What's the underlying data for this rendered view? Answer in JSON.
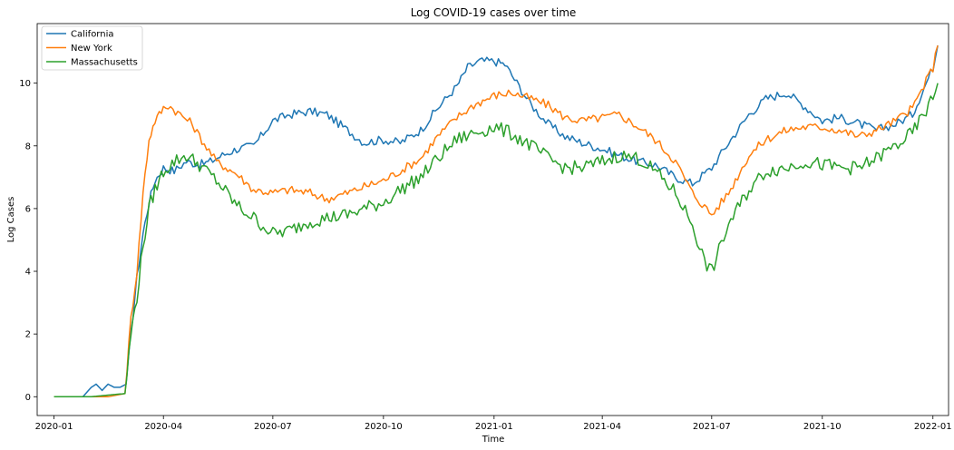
{
  "chart_data": {
    "type": "line",
    "title": "Log  COVID-19 cases over time",
    "xlabel": "Time",
    "ylabel": "Log Cases",
    "xlim": [
      "2019-12-18",
      "2022-01-14"
    ],
    "ylim": [
      -0.6,
      11.9
    ],
    "x_ticks": [
      "2020-01",
      "2020-04",
      "2020-07",
      "2020-10",
      "2021-01",
      "2021-04",
      "2021-07",
      "2021-10",
      "2022-01"
    ],
    "y_ticks": [
      0,
      2,
      4,
      6,
      8,
      10
    ],
    "legend_position": "top-left",
    "grid": false,
    "series": [
      {
        "name": "California",
        "color": "#1f77b4",
        "x": [
          "2020-01-01",
          "2020-01-25",
          "2020-02-01",
          "2020-02-05",
          "2020-02-10",
          "2020-02-15",
          "2020-02-20",
          "2020-02-25",
          "2020-03-01",
          "2020-03-05",
          "2020-03-10",
          "2020-03-15",
          "2020-03-20",
          "2020-03-25",
          "2020-04-01",
          "2020-04-10",
          "2020-04-20",
          "2020-05-01",
          "2020-05-10",
          "2020-05-20",
          "2020-06-01",
          "2020-06-15",
          "2020-07-01",
          "2020-07-15",
          "2020-08-01",
          "2020-08-15",
          "2020-09-01",
          "2020-09-15",
          "2020-10-01",
          "2020-10-15",
          "2020-11-01",
          "2020-11-15",
          "2020-12-01",
          "2020-12-10",
          "2020-12-20",
          "2021-01-01",
          "2021-01-10",
          "2021-01-20",
          "2021-02-01",
          "2021-02-15",
          "2021-03-01",
          "2021-03-15",
          "2021-04-01",
          "2021-04-15",
          "2021-05-01",
          "2021-05-15",
          "2021-06-01",
          "2021-06-15",
          "2021-07-01",
          "2021-07-15",
          "2021-08-01",
          "2021-08-15",
          "2021-09-01",
          "2021-09-15",
          "2021-10-01",
          "2021-10-15",
          "2021-11-01",
          "2021-11-15",
          "2021-12-01",
          "2021-12-15",
          "2022-01-01",
          "2022-01-05"
        ],
        "values": [
          0,
          0,
          0.3,
          0.4,
          0.2,
          0.4,
          0.3,
          0.3,
          0.4,
          2.0,
          3.8,
          5.2,
          6.2,
          6.9,
          7.3,
          7.2,
          7.5,
          7.4,
          7.5,
          7.7,
          7.9,
          8.0,
          8.8,
          9.0,
          9.1,
          9.0,
          8.5,
          8.1,
          8.2,
          8.1,
          8.5,
          9.2,
          9.9,
          10.5,
          10.7,
          10.7,
          10.6,
          10.0,
          9.3,
          8.7,
          8.3,
          8.1,
          7.9,
          7.7,
          7.5,
          7.4,
          7.0,
          6.8,
          7.3,
          8.1,
          9.0,
          9.5,
          9.7,
          9.3,
          8.8,
          8.9,
          8.7,
          8.5,
          8.7,
          9.0,
          10.5,
          11.2
        ]
      },
      {
        "name": "New York",
        "color": "#ff7f0e",
        "x": [
          "2020-01-01",
          "2020-02-01",
          "2020-02-15",
          "2020-02-29",
          "2020-03-05",
          "2020-03-10",
          "2020-03-15",
          "2020-03-20",
          "2020-03-25",
          "2020-04-01",
          "2020-04-05",
          "2020-04-15",
          "2020-04-25",
          "2020-05-01",
          "2020-05-15",
          "2020-06-01",
          "2020-06-15",
          "2020-07-01",
          "2020-07-15",
          "2020-08-01",
          "2020-08-15",
          "2020-09-01",
          "2020-09-15",
          "2020-10-01",
          "2020-10-15",
          "2020-11-01",
          "2020-11-15",
          "2020-12-01",
          "2020-12-15",
          "2021-01-01",
          "2021-01-15",
          "2021-02-01",
          "2021-02-15",
          "2021-03-01",
          "2021-03-15",
          "2021-04-01",
          "2021-04-15",
          "2021-05-01",
          "2021-05-15",
          "2021-06-01",
          "2021-06-15",
          "2021-07-01",
          "2021-07-15",
          "2021-08-01",
          "2021-08-15",
          "2021-09-01",
          "2021-09-15",
          "2021-10-01",
          "2021-10-15",
          "2021-11-01",
          "2021-11-15",
          "2021-12-01",
          "2021-12-15",
          "2022-01-01",
          "2022-01-05"
        ],
        "values": [
          0,
          0,
          0,
          0.1,
          2.5,
          4.0,
          6.5,
          8.2,
          8.8,
          9.2,
          9.3,
          9.0,
          8.7,
          8.3,
          7.5,
          7.1,
          6.6,
          6.5,
          6.6,
          6.5,
          6.3,
          6.5,
          6.7,
          6.9,
          7.2,
          7.6,
          8.3,
          8.9,
          9.3,
          9.6,
          9.7,
          9.5,
          9.3,
          8.9,
          8.8,
          8.9,
          9.0,
          8.6,
          8.2,
          7.5,
          6.5,
          5.8,
          6.5,
          7.7,
          8.2,
          8.5,
          8.6,
          8.6,
          8.5,
          8.3,
          8.5,
          8.8,
          9.2,
          10.5,
          11.2
        ]
      },
      {
        "name": "Massachusetts",
        "color": "#2ca02c",
        "x": [
          "2020-01-01",
          "2020-02-01",
          "2020-02-29",
          "2020-03-05",
          "2020-03-10",
          "2020-03-15",
          "2020-03-20",
          "2020-03-25",
          "2020-04-01",
          "2020-04-10",
          "2020-04-20",
          "2020-05-01",
          "2020-05-15",
          "2020-06-01",
          "2020-06-15",
          "2020-07-01",
          "2020-07-15",
          "2020-08-01",
          "2020-08-15",
          "2020-09-01",
          "2020-09-15",
          "2020-10-01",
          "2020-10-15",
          "2020-11-01",
          "2020-11-15",
          "2020-12-01",
          "2020-12-15",
          "2021-01-01",
          "2021-01-15",
          "2021-02-01",
          "2021-02-15",
          "2021-03-01",
          "2021-03-15",
          "2021-04-01",
          "2021-04-15",
          "2021-05-01",
          "2021-05-15",
          "2021-06-01",
          "2021-06-15",
          "2021-06-25",
          "2021-07-01",
          "2021-07-15",
          "2021-08-01",
          "2021-08-15",
          "2021-09-01",
          "2021-09-15",
          "2021-10-01",
          "2021-10-15",
          "2021-11-01",
          "2021-11-15",
          "2021-12-01",
          "2021-12-15",
          "2022-01-01",
          "2022-01-05"
        ],
        "values": [
          0,
          0,
          0.1,
          2.0,
          3.2,
          4.8,
          6.0,
          6.6,
          7.2,
          7.5,
          7.7,
          7.4,
          6.9,
          6.1,
          5.7,
          5.2,
          5.3,
          5.6,
          5.7,
          5.8,
          6.0,
          6.2,
          6.6,
          7.0,
          7.6,
          8.2,
          8.4,
          8.6,
          8.4,
          8.0,
          7.6,
          7.3,
          7.3,
          7.5,
          7.7,
          7.6,
          7.2,
          6.5,
          5.5,
          4.3,
          4.0,
          5.5,
          6.6,
          7.2,
          7.3,
          7.5,
          7.4,
          7.3,
          7.3,
          7.6,
          8.0,
          8.4,
          9.5,
          10.0
        ]
      }
    ]
  }
}
